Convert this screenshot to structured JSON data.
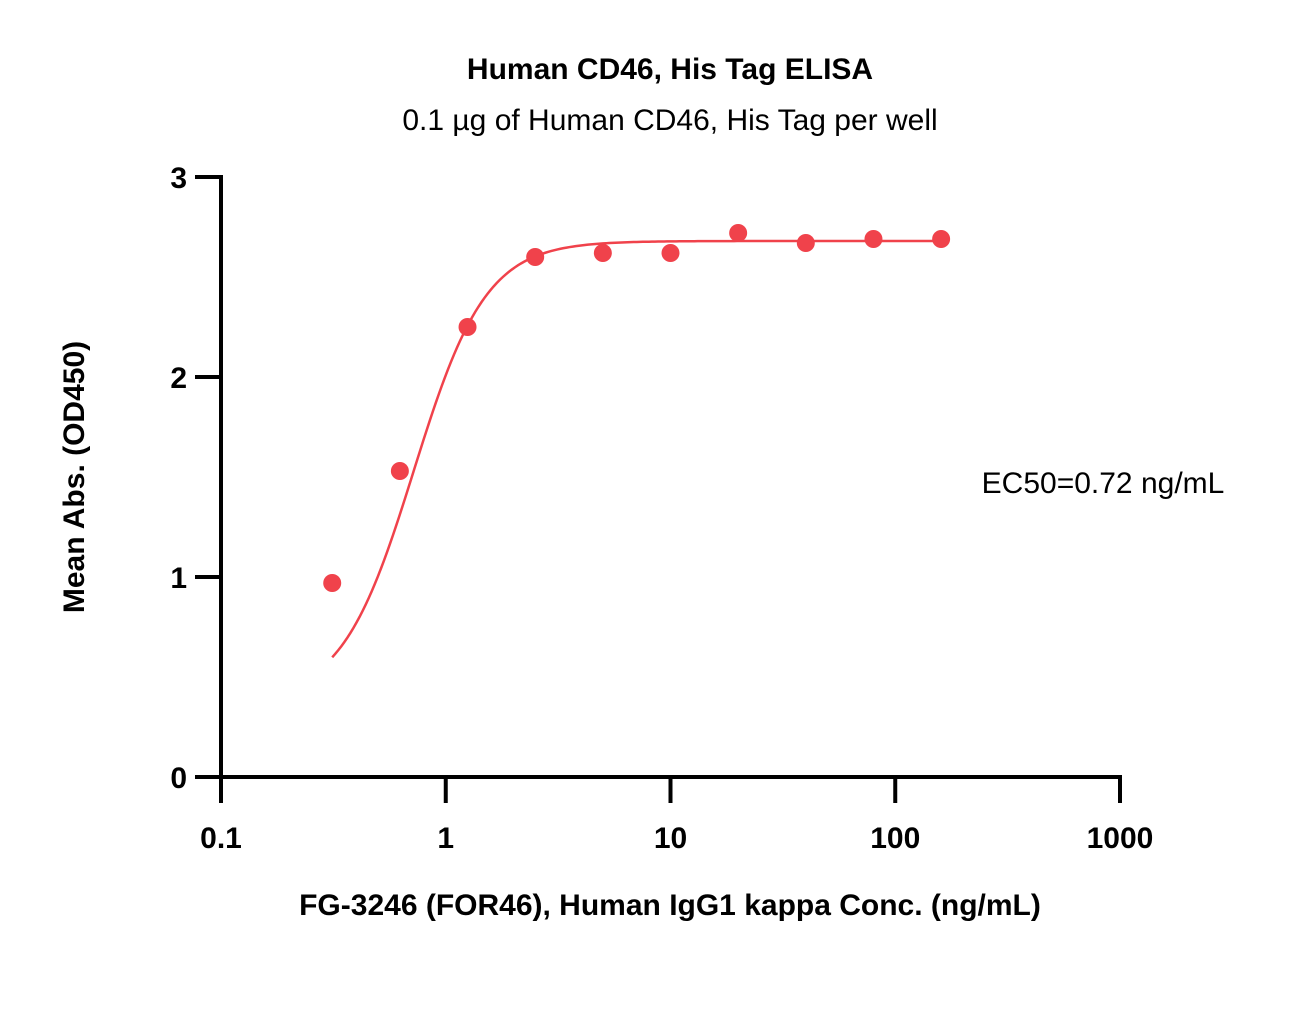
{
  "chart_data": {
    "type": "scatter",
    "title": "Human CD46, His Tag ELISA",
    "subtitle": "0.1 µg of Human CD46, His Tag per well",
    "xlabel": "FG-3246 (FOR46), Human IgG1 kappa Conc. (ng/mL)",
    "ylabel": "Mean Abs. (OD450)",
    "xscale": "log",
    "xlim": [
      0.1,
      1000
    ],
    "ylim": [
      0,
      3
    ],
    "xticks": [
      "0.1",
      "1",
      "10",
      "100",
      "1000"
    ],
    "yticks": [
      "0",
      "1",
      "2",
      "3"
    ],
    "grid": false,
    "annotation": "EC50=0.72 ng/mL",
    "colors": {
      "series": "#f0424b",
      "axes": "#000000"
    },
    "series": [
      {
        "x": [
          0.3125,
          0.625,
          1.25,
          2.5,
          5,
          10,
          20,
          40,
          80,
          160
        ],
        "y": [
          0.97,
          1.53,
          2.25,
          2.6,
          2.62,
          2.62,
          2.72,
          2.67,
          2.69,
          2.69
        ]
      }
    ],
    "fit": {
      "type": "4PL",
      "bottom": 0.38,
      "top": 2.68,
      "ec50": 0.72,
      "hill": 2.7,
      "x_range": [
        0.3125,
        160
      ]
    }
  }
}
